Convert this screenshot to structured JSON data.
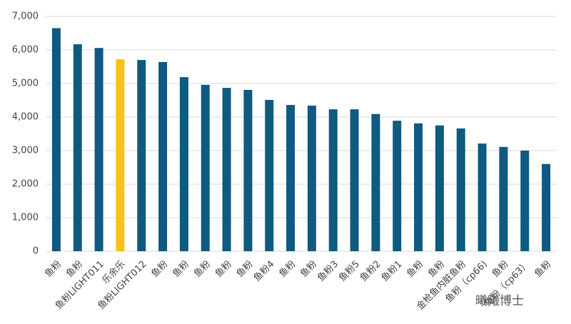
{
  "chart_data": {
    "type": "bar",
    "categories": [
      "鱼粉",
      "鱼粉",
      "鱼粉LIGHT011",
      "乐余乐",
      "鱼粉LIGHT012",
      "鱼粉",
      "鱼粉",
      "鱼粉",
      "鱼粉",
      "鱼粉",
      "鱼粉4",
      "鱼粉",
      "鱼粉",
      "鱼粉3",
      "鱼粉5",
      "鱼粉2",
      "鱼粉1",
      "鱼粉",
      "鱼粉",
      "金枪鱼内脏鱼粉",
      "鱼粉（cp66)",
      "鱼粉",
      "鱼粉（cp63）",
      "鱼粉"
    ],
    "values": [
      6650,
      6170,
      6060,
      5720,
      5700,
      5640,
      5190,
      4960,
      4870,
      4810,
      4510,
      4360,
      4340,
      4230,
      4230,
      4090,
      3890,
      3810,
      3750,
      3660,
      3210,
      3110,
      3000,
      2600
    ],
    "colors": [
      "#0f5a80",
      "#0f5a80",
      "#0f5a80",
      "#f7c21b",
      "#0f5a80",
      "#0f5a80",
      "#0f5a80",
      "#0f5a80",
      "#0f5a80",
      "#0f5a80",
      "#0f5a80",
      "#0f5a80",
      "#0f5a80",
      "#0f5a80",
      "#0f5a80",
      "#0f5a80",
      "#0f5a80",
      "#0f5a80",
      "#0f5a80",
      "#0f5a80",
      "#0f5a80",
      "#0f5a80",
      "#0f5a80",
      "#0f5a80"
    ],
    "ylim": [
      0,
      7000
    ],
    "yticks": [
      0,
      {
        "value": 1000,
        "label": "1,000"
      },
      {
        "value": 2000,
        "label": "2,000"
      },
      {
        "value": 3000,
        "label": "3,000"
      },
      {
        "value": 4000,
        "label": "4,000"
      },
      {
        "value": 5000,
        "label": "5,000"
      },
      {
        "value": 6000,
        "label": "6,000"
      },
      {
        "value": 7000,
        "label": "7,000"
      }
    ],
    "grid": true,
    "watermark": "曦曦博士"
  }
}
